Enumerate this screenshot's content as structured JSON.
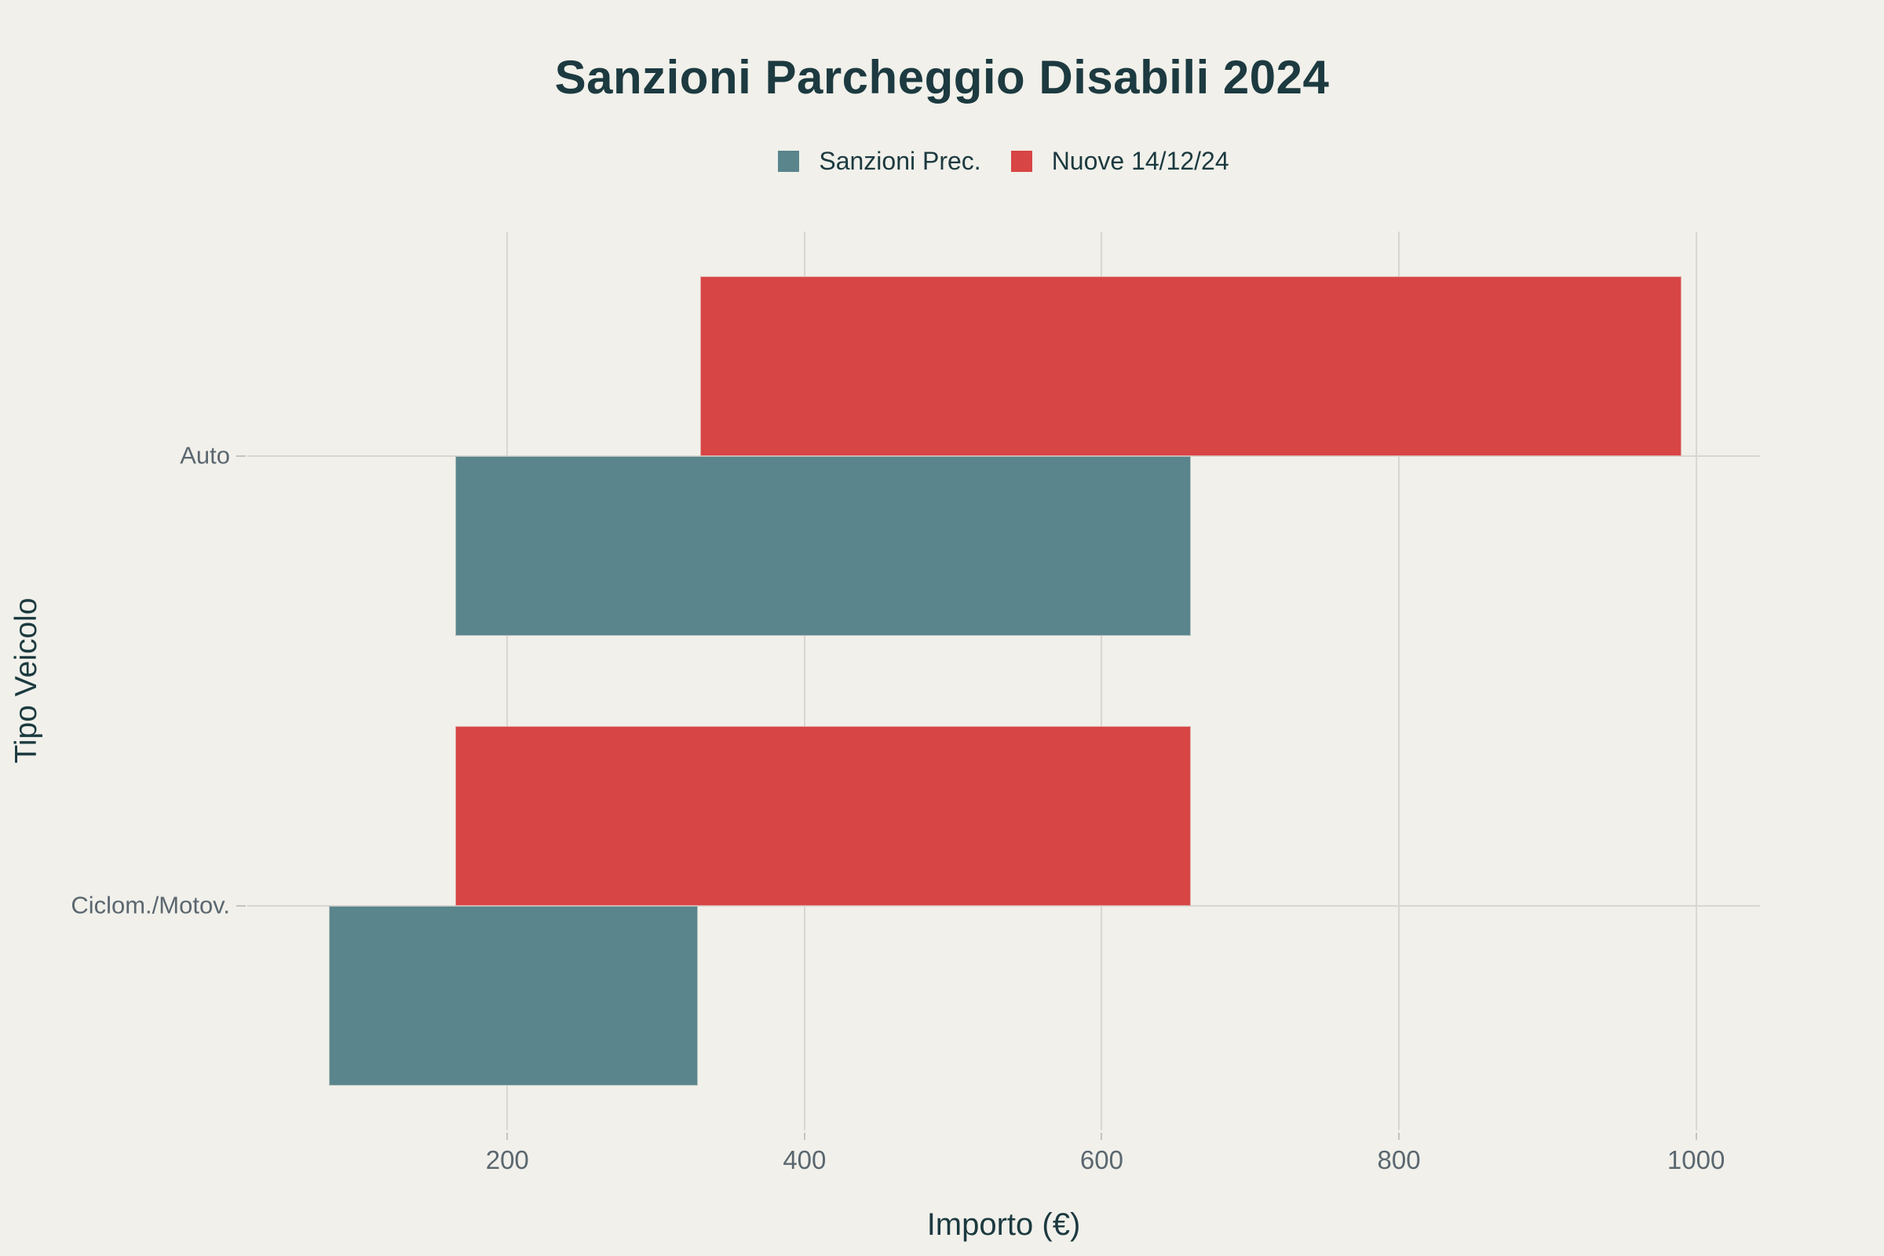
{
  "title": "Sanzioni Parcheggio Disabili 2024",
  "chart_data": {
    "type": "bar",
    "orientation": "horizontal",
    "title": "Sanzioni Parcheggio Disabili 2024",
    "xlabel": "Importo (€)",
    "ylabel": "Tipo Veicolo",
    "categories": [
      "Auto",
      "Ciclom./Motov."
    ],
    "series": [
      {
        "name": "Sanzioni Prec.",
        "color": "#5a858c",
        "side": "below",
        "ranges": [
          {
            "category": "Auto",
            "from": 165,
            "to": 660
          },
          {
            "category": "Ciclom./Motov.",
            "from": 80,
            "to": 328
          }
        ]
      },
      {
        "name": "Nuove 14/12/24",
        "color": "#d84545",
        "side": "above",
        "ranges": [
          {
            "category": "Auto",
            "from": 330,
            "to": 990
          },
          {
            "category": "Ciclom./Motov.",
            "from": 165,
            "to": 660
          }
        ]
      }
    ],
    "xticks": [
      200,
      400,
      600,
      800,
      1000
    ],
    "xlim": [
      25,
      1043
    ],
    "grid": true,
    "legend_position": "top-center",
    "background": "#f1f0ea",
    "colors": {
      "grid": "#d9d7cf",
      "tick": "#c6c3bb",
      "muted_text": "#5b6770",
      "dark_text": "#1c3a40"
    }
  }
}
